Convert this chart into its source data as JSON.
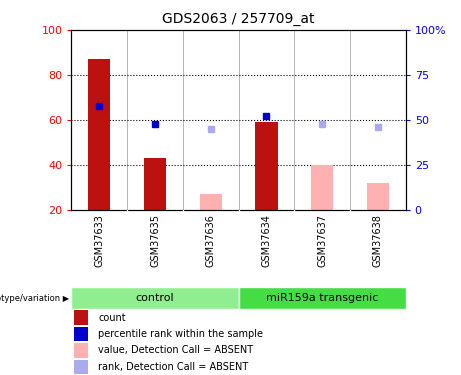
{
  "title": "GDS2063 / 257709_at",
  "samples": [
    "GSM37633",
    "GSM37635",
    "GSM37636",
    "GSM37634",
    "GSM37637",
    "GSM37638"
  ],
  "red_bars": {
    "GSM37633": 87,
    "GSM37635": 43,
    "GSM37634": 59
  },
  "pink_bars": {
    "GSM37636": 27,
    "GSM37637": 40,
    "GSM37638": 32
  },
  "blue_squares_dark": {
    "GSM37633": 58,
    "GSM37635": 48,
    "GSM37634": 52
  },
  "blue_squares_light": {
    "GSM37636": 45,
    "GSM37637": 48,
    "GSM37638": 46
  },
  "ylim_left": [
    20,
    100
  ],
  "yticks_left": [
    20,
    40,
    60,
    80,
    100
  ],
  "ytick_labels_left": [
    "20",
    "40",
    "60",
    "80",
    "100"
  ],
  "ylim_right": [
    0,
    100
  ],
  "yticks_right": [
    0,
    25,
    50,
    75,
    100
  ],
  "ytick_labels_right": [
    "0",
    "25",
    "50",
    "75",
    "100%"
  ],
  "bar_width": 0.4,
  "bar_color_red": "#BB1111",
  "bar_color_pink": "#FFB0B0",
  "square_color_dark_blue": "#0000CC",
  "square_color_light_blue": "#AAAAEE",
  "group_control_color": "#90EE90",
  "group_mir_color": "#44DD44",
  "xlabel_area_color": "#CCCCCC"
}
